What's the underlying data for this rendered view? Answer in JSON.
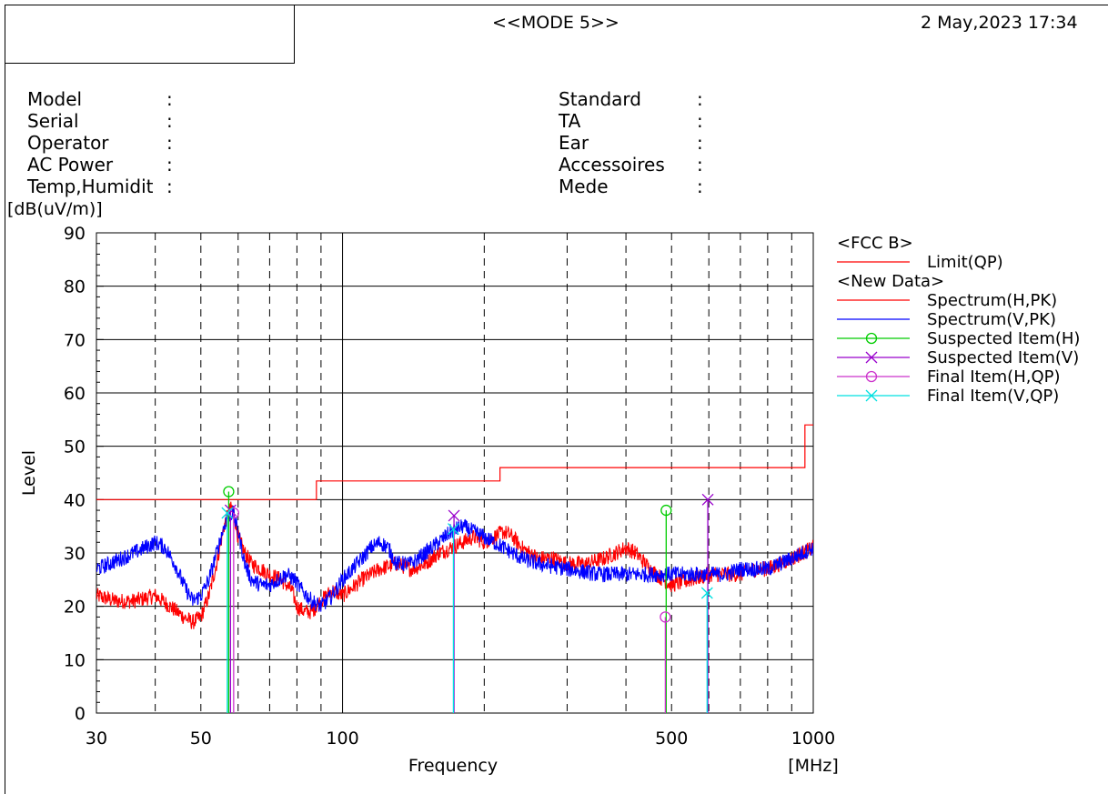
{
  "header": {
    "mode": "<<MODE 5>>",
    "datetime": "2 May,2023 17:34"
  },
  "info_left": [
    {
      "label": "Model",
      "value": ""
    },
    {
      "label": "Serial",
      "value": ""
    },
    {
      "label": "Operator",
      "value": ""
    },
    {
      "label": "AC Power",
      "value": ""
    },
    {
      "label": "Temp,Humidit",
      "value": ""
    }
  ],
  "info_right": [
    {
      "label": "Standard",
      "value": ""
    },
    {
      "label": "TA",
      "value": ""
    },
    {
      "label": "Ear",
      "value": ""
    },
    {
      "label": "Accessoires",
      "value": ""
    },
    {
      "label": "Mede",
      "value": ""
    }
  ],
  "chart_data": {
    "type": "line",
    "title": "",
    "xlabel": "Frequency",
    "xunit": "[MHz]",
    "ylabel": "Level",
    "yunit": "[dB(uV/m)]",
    "xscale": "log",
    "xlim": [
      30,
      1000
    ],
    "ylim": [
      0,
      90
    ],
    "yticks": [
      0,
      10,
      20,
      30,
      40,
      50,
      60,
      70,
      80,
      90
    ],
    "xtick_labels": [
      30,
      50,
      100,
      500,
      1000
    ],
    "x_gridlines": [
      40,
      50,
      60,
      70,
      80,
      90,
      100,
      200,
      300,
      400,
      500,
      600,
      700,
      800,
      900
    ],
    "grid": true,
    "legend_position": "right",
    "legend": [
      {
        "header": "<FCC B>",
        "items": [
          {
            "name": "Limit(QP)",
            "color": "#ff0000",
            "marker": "none"
          }
        ]
      },
      {
        "header": "<New Data>",
        "items": [
          {
            "name": "Spectrum(H,PK)",
            "color": "#ff0000",
            "marker": "none"
          },
          {
            "name": "Spectrum(V,PK)",
            "color": "#0000ff",
            "marker": "none"
          },
          {
            "name": "Suspected Item(H)",
            "color": "#00cc00",
            "marker": "circle"
          },
          {
            "name": "Suspected Item(V)",
            "color": "#9900cc",
            "marker": "x"
          },
          {
            "name": "Final Item(H,QP)",
            "color": "#cc33cc",
            "marker": "circle"
          },
          {
            "name": "Final Item(V,QP)",
            "color": "#00e0e0",
            "marker": "x"
          }
        ]
      }
    ],
    "limit": {
      "name": "Limit(QP)",
      "color": "#ff0000",
      "steps": [
        {
          "x": [
            30,
            88
          ],
          "y": 40
        },
        {
          "x": [
            88,
            216
          ],
          "y": 43.5
        },
        {
          "x": [
            216,
            960
          ],
          "y": 46
        },
        {
          "x": [
            960,
            1000
          ],
          "y": 54
        }
      ]
    },
    "series": [
      {
        "name": "Spectrum(H,PK)",
        "color": "#ff0000",
        "noise": 1.5,
        "points": [
          [
            30,
            22
          ],
          [
            33,
            21
          ],
          [
            36,
            21
          ],
          [
            40,
            22
          ],
          [
            43,
            20
          ],
          [
            46,
            18
          ],
          [
            48,
            17
          ],
          [
            50,
            18
          ],
          [
            52,
            22
          ],
          [
            54,
            28
          ],
          [
            56,
            35
          ],
          [
            57.5,
            38
          ],
          [
            58.5,
            38.5
          ],
          [
            60,
            33
          ],
          [
            62,
            30
          ],
          [
            64,
            28
          ],
          [
            67,
            27
          ],
          [
            70,
            26
          ],
          [
            74,
            25
          ],
          [
            78,
            23
          ],
          [
            80,
            20
          ],
          [
            83,
            19
          ],
          [
            86,
            19
          ],
          [
            90,
            21
          ],
          [
            95,
            23
          ],
          [
            100,
            22
          ],
          [
            110,
            25
          ],
          [
            120,
            27
          ],
          [
            130,
            28
          ],
          [
            140,
            27
          ],
          [
            150,
            28
          ],
          [
            160,
            30
          ],
          [
            170,
            31
          ],
          [
            180,
            32
          ],
          [
            190,
            33
          ],
          [
            200,
            32
          ],
          [
            210,
            33
          ],
          [
            220,
            34
          ],
          [
            230,
            33
          ],
          [
            240,
            31
          ],
          [
            260,
            29
          ],
          [
            280,
            29
          ],
          [
            300,
            28
          ],
          [
            330,
            28
          ],
          [
            360,
            29
          ],
          [
            380,
            30
          ],
          [
            400,
            31
          ],
          [
            420,
            30
          ],
          [
            450,
            27
          ],
          [
            480,
            25
          ],
          [
            500,
            24
          ],
          [
            550,
            25
          ],
          [
            600,
            26
          ],
          [
            650,
            26
          ],
          [
            700,
            26
          ],
          [
            750,
            27
          ],
          [
            800,
            27
          ],
          [
            850,
            28
          ],
          [
            900,
            29
          ],
          [
            950,
            30
          ],
          [
            1000,
            31
          ]
        ]
      },
      {
        "name": "Spectrum(V,PK)",
        "color": "#0000ff",
        "noise": 1.5,
        "points": [
          [
            30,
            27
          ],
          [
            32,
            28
          ],
          [
            34,
            29
          ],
          [
            36,
            30
          ],
          [
            38,
            31
          ],
          [
            40,
            32
          ],
          [
            42,
            31
          ],
          [
            44,
            28
          ],
          [
            46,
            24
          ],
          [
            48,
            21
          ],
          [
            50,
            22
          ],
          [
            52,
            25
          ],
          [
            54,
            30
          ],
          [
            56,
            35
          ],
          [
            57,
            37
          ],
          [
            58.5,
            37.5
          ],
          [
            60,
            34
          ],
          [
            62,
            28
          ],
          [
            64,
            25
          ],
          [
            67,
            24
          ],
          [
            70,
            24
          ],
          [
            73,
            25
          ],
          [
            76,
            26
          ],
          [
            79,
            25
          ],
          [
            82,
            23
          ],
          [
            86,
            21
          ],
          [
            90,
            20
          ],
          [
            95,
            22
          ],
          [
            100,
            25
          ],
          [
            105,
            27
          ],
          [
            110,
            29
          ],
          [
            115,
            31
          ],
          [
            120,
            32
          ],
          [
            125,
            31
          ],
          [
            130,
            28
          ],
          [
            140,
            28
          ],
          [
            150,
            30
          ],
          [
            160,
            32
          ],
          [
            170,
            34
          ],
          [
            180,
            35
          ],
          [
            190,
            34
          ],
          [
            200,
            33
          ],
          [
            220,
            31
          ],
          [
            240,
            29
          ],
          [
            260,
            28
          ],
          [
            300,
            27
          ],
          [
            350,
            26
          ],
          [
            400,
            26
          ],
          [
            450,
            26
          ],
          [
            500,
            26
          ],
          [
            550,
            26
          ],
          [
            600,
            26
          ],
          [
            650,
            26
          ],
          [
            700,
            27
          ],
          [
            750,
            27
          ],
          [
            800,
            27
          ],
          [
            850,
            28
          ],
          [
            900,
            29
          ],
          [
            950,
            30
          ],
          [
            1000,
            31
          ]
        ]
      }
    ],
    "markers": [
      {
        "series": "Suspected Item(H)",
        "x": 57.3,
        "y": 41.5,
        "marker": "circle",
        "color": "#00cc00",
        "stem": "#00cc00"
      },
      {
        "series": "Suspected Item(H)",
        "x": 487,
        "y": 38,
        "marker": "circle",
        "color": "#00cc00",
        "stem": "#00cc00"
      },
      {
        "series": "Suspected Item(V)",
        "x": 57.8,
        "y": 38,
        "marker": "x",
        "color": "#9900cc",
        "stem": "#9900cc"
      },
      {
        "series": "Suspected Item(V)",
        "x": 172.5,
        "y": 37,
        "marker": "x",
        "color": "#9900cc",
        "stem": "#9900cc"
      },
      {
        "series": "Suspected Item(V)",
        "x": 597,
        "y": 40,
        "marker": "x",
        "color": "#9900cc",
        "stem": "#9900cc"
      },
      {
        "series": "Final Item(H,QP)",
        "x": 58.7,
        "y": 37.5,
        "marker": "circle",
        "color": "#cc33cc",
        "stem": "#cc33cc"
      },
      {
        "series": "Final Item(H,QP)",
        "x": 485,
        "y": 18,
        "marker": "circle",
        "color": "#cc33cc",
        "stem": "#cc33cc"
      },
      {
        "series": "Final Item(V,QP)",
        "x": 56.9,
        "y": 37.5,
        "marker": "x",
        "color": "#00e0e0",
        "stem": "#00e0e0"
      },
      {
        "series": "Final Item(V,QP)",
        "x": 172,
        "y": 34.5,
        "marker": "x",
        "color": "#00e0e0",
        "stem": "#00e0e0"
      },
      {
        "series": "Final Item(V,QP)",
        "x": 595,
        "y": 22.5,
        "marker": "x",
        "color": "#00e0e0",
        "stem": "#00e0e0"
      }
    ]
  }
}
